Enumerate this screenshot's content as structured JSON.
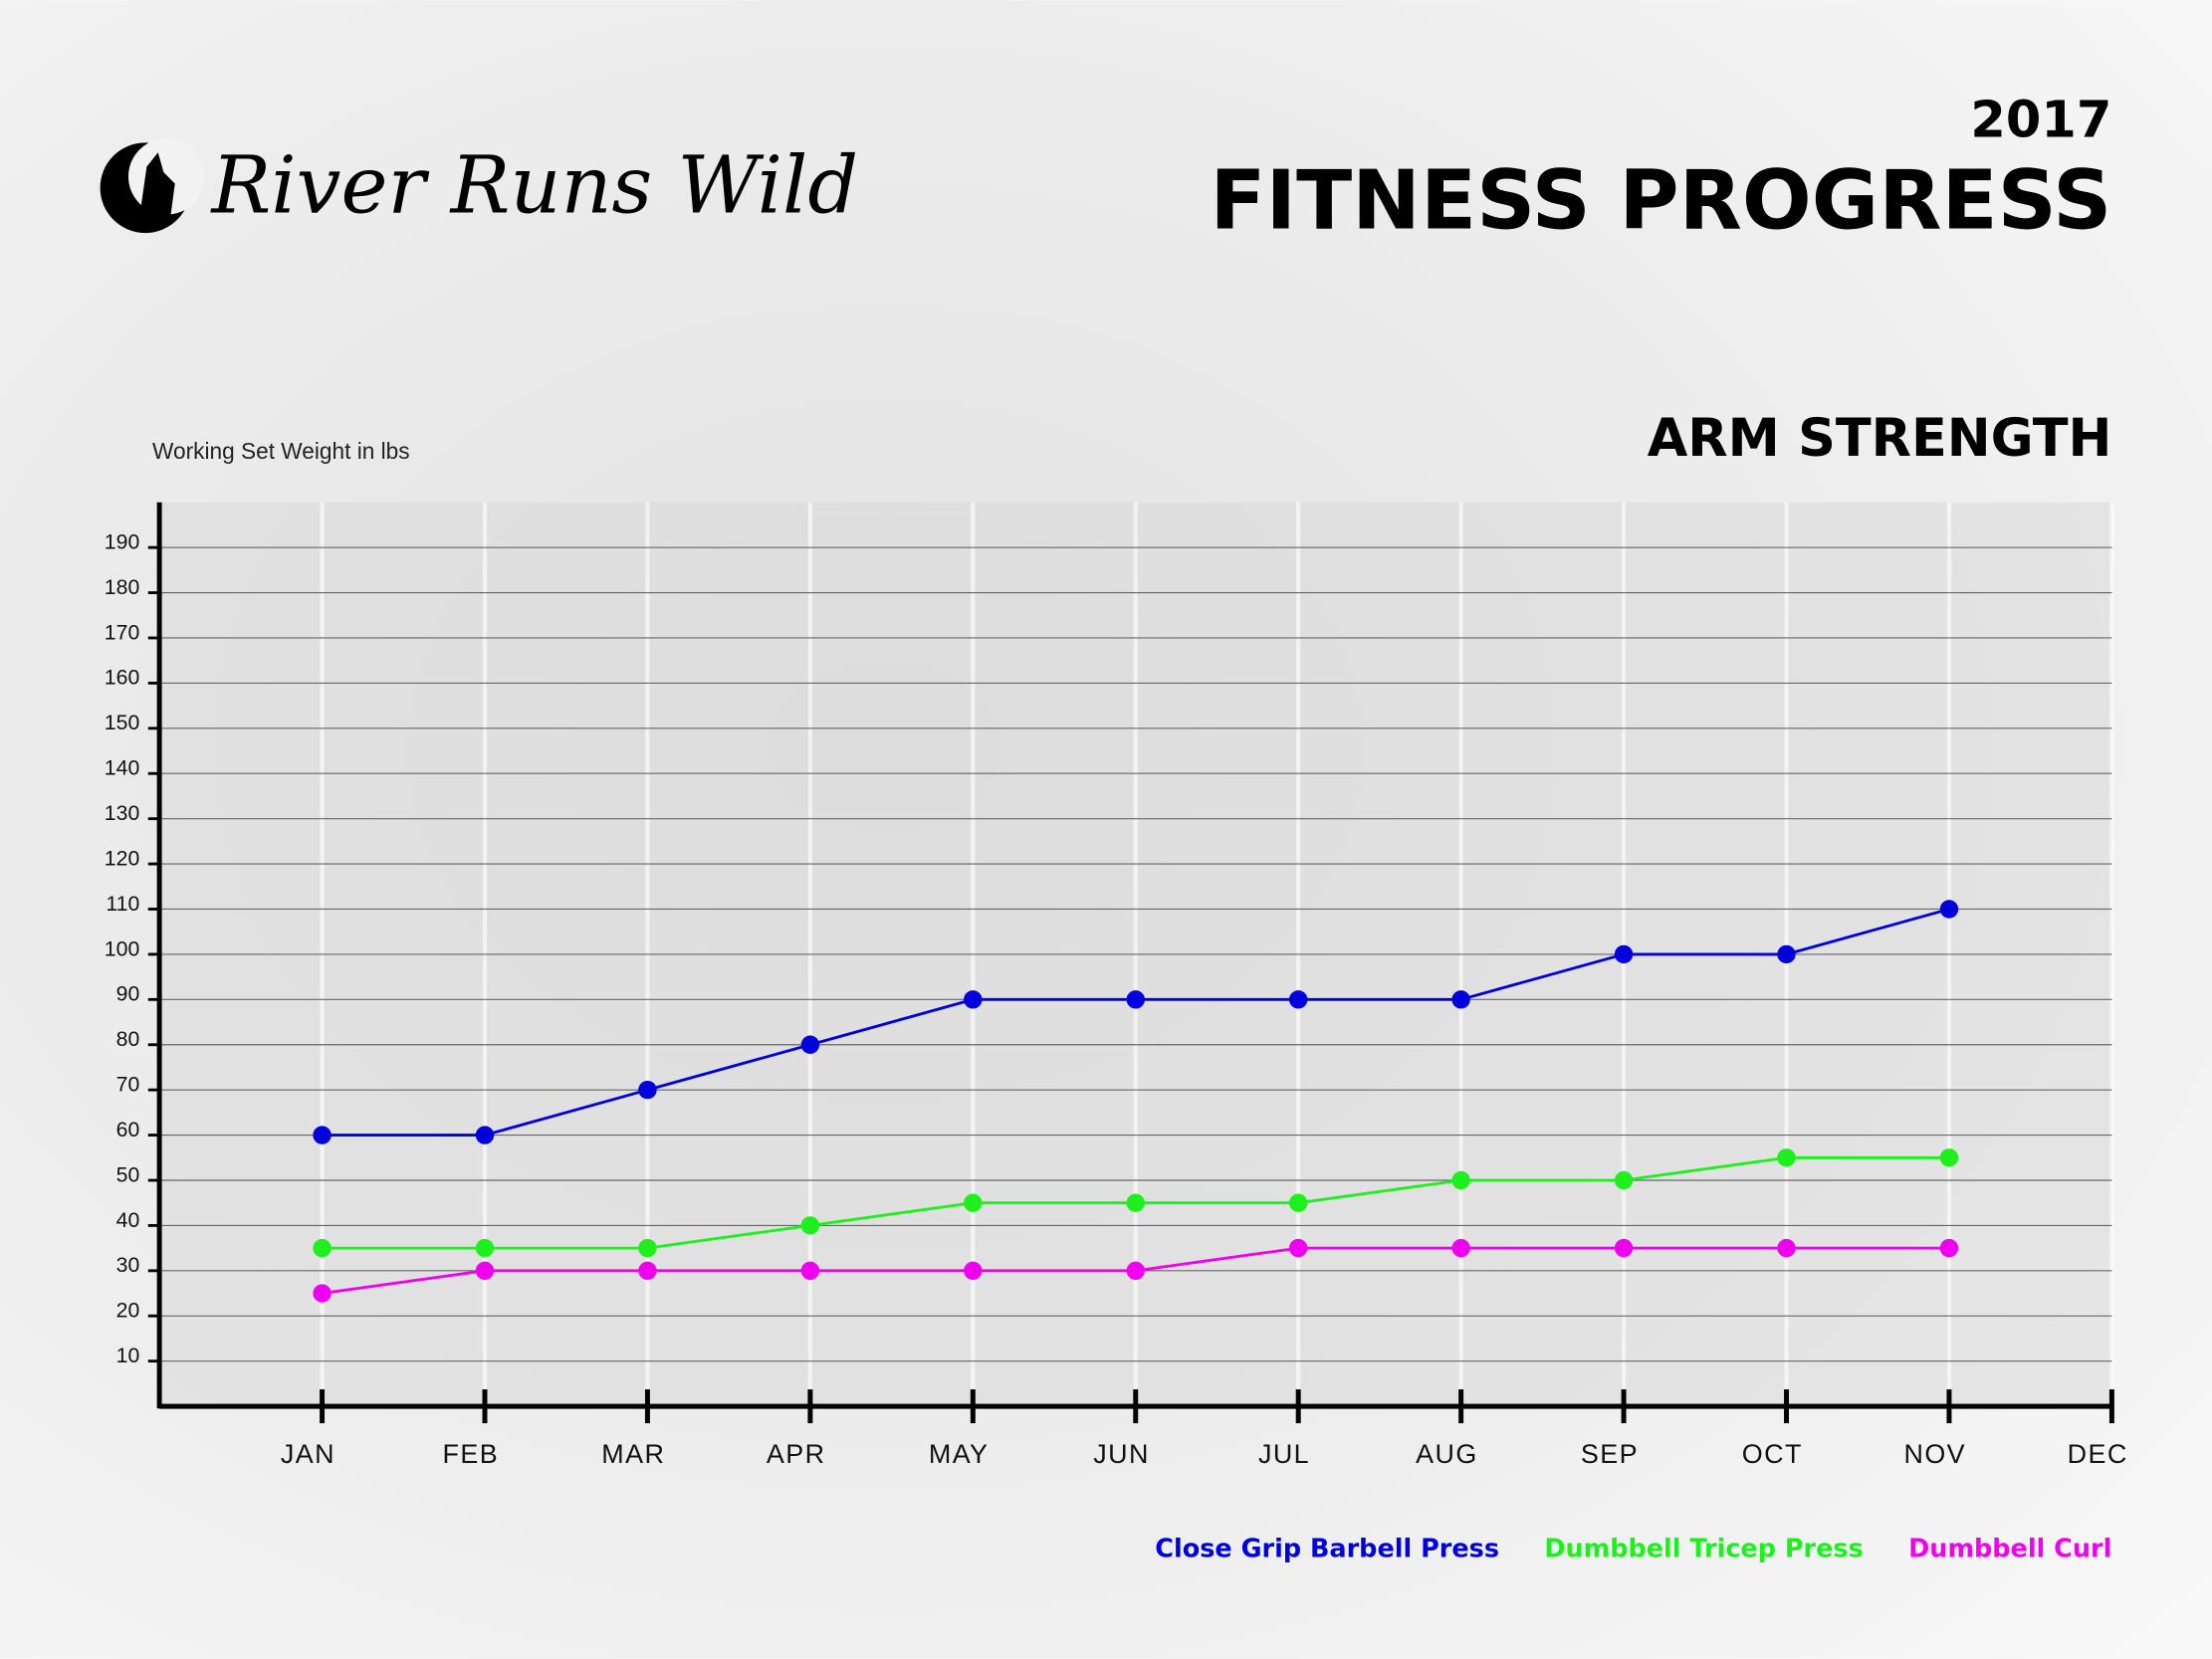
{
  "brand": "River Runs Wild",
  "chart_data": {
    "type": "line",
    "supertitle": "2017",
    "title": "FITNESS PROGRESS",
    "subtitle": "ARM STRENGTH",
    "y_label": "Working Set Weight in lbs",
    "categories": [
      "JAN",
      "FEB",
      "MAR",
      "APR",
      "MAY",
      "JUN",
      "JUL",
      "AUG",
      "SEP",
      "OCT",
      "NOV",
      "DEC"
    ],
    "series": [
      {
        "name": "Close Grip Barbell Press",
        "color": "#0000dd",
        "values": [
          60,
          60,
          70,
          80,
          90,
          90,
          90,
          90,
          100,
          100,
          110,
          null
        ]
      },
      {
        "name": "Dumbbell Tricep Press",
        "color": "#1ef01e",
        "values": [
          35,
          35,
          35,
          40,
          45,
          45,
          45,
          50,
          50,
          55,
          55,
          null
        ]
      },
      {
        "name": "Dumbbell Curl",
        "color": "#ee00ee",
        "values": [
          25,
          30,
          30,
          30,
          30,
          30,
          35,
          35,
          35,
          35,
          35,
          null
        ]
      }
    ],
    "ylim": [
      0,
      200
    ],
    "yticks": [
      10,
      20,
      30,
      40,
      50,
      60,
      70,
      80,
      90,
      100,
      110,
      120,
      130,
      140,
      150,
      160,
      170,
      180,
      190
    ],
    "grid": true,
    "legend": "bottom-right"
  }
}
